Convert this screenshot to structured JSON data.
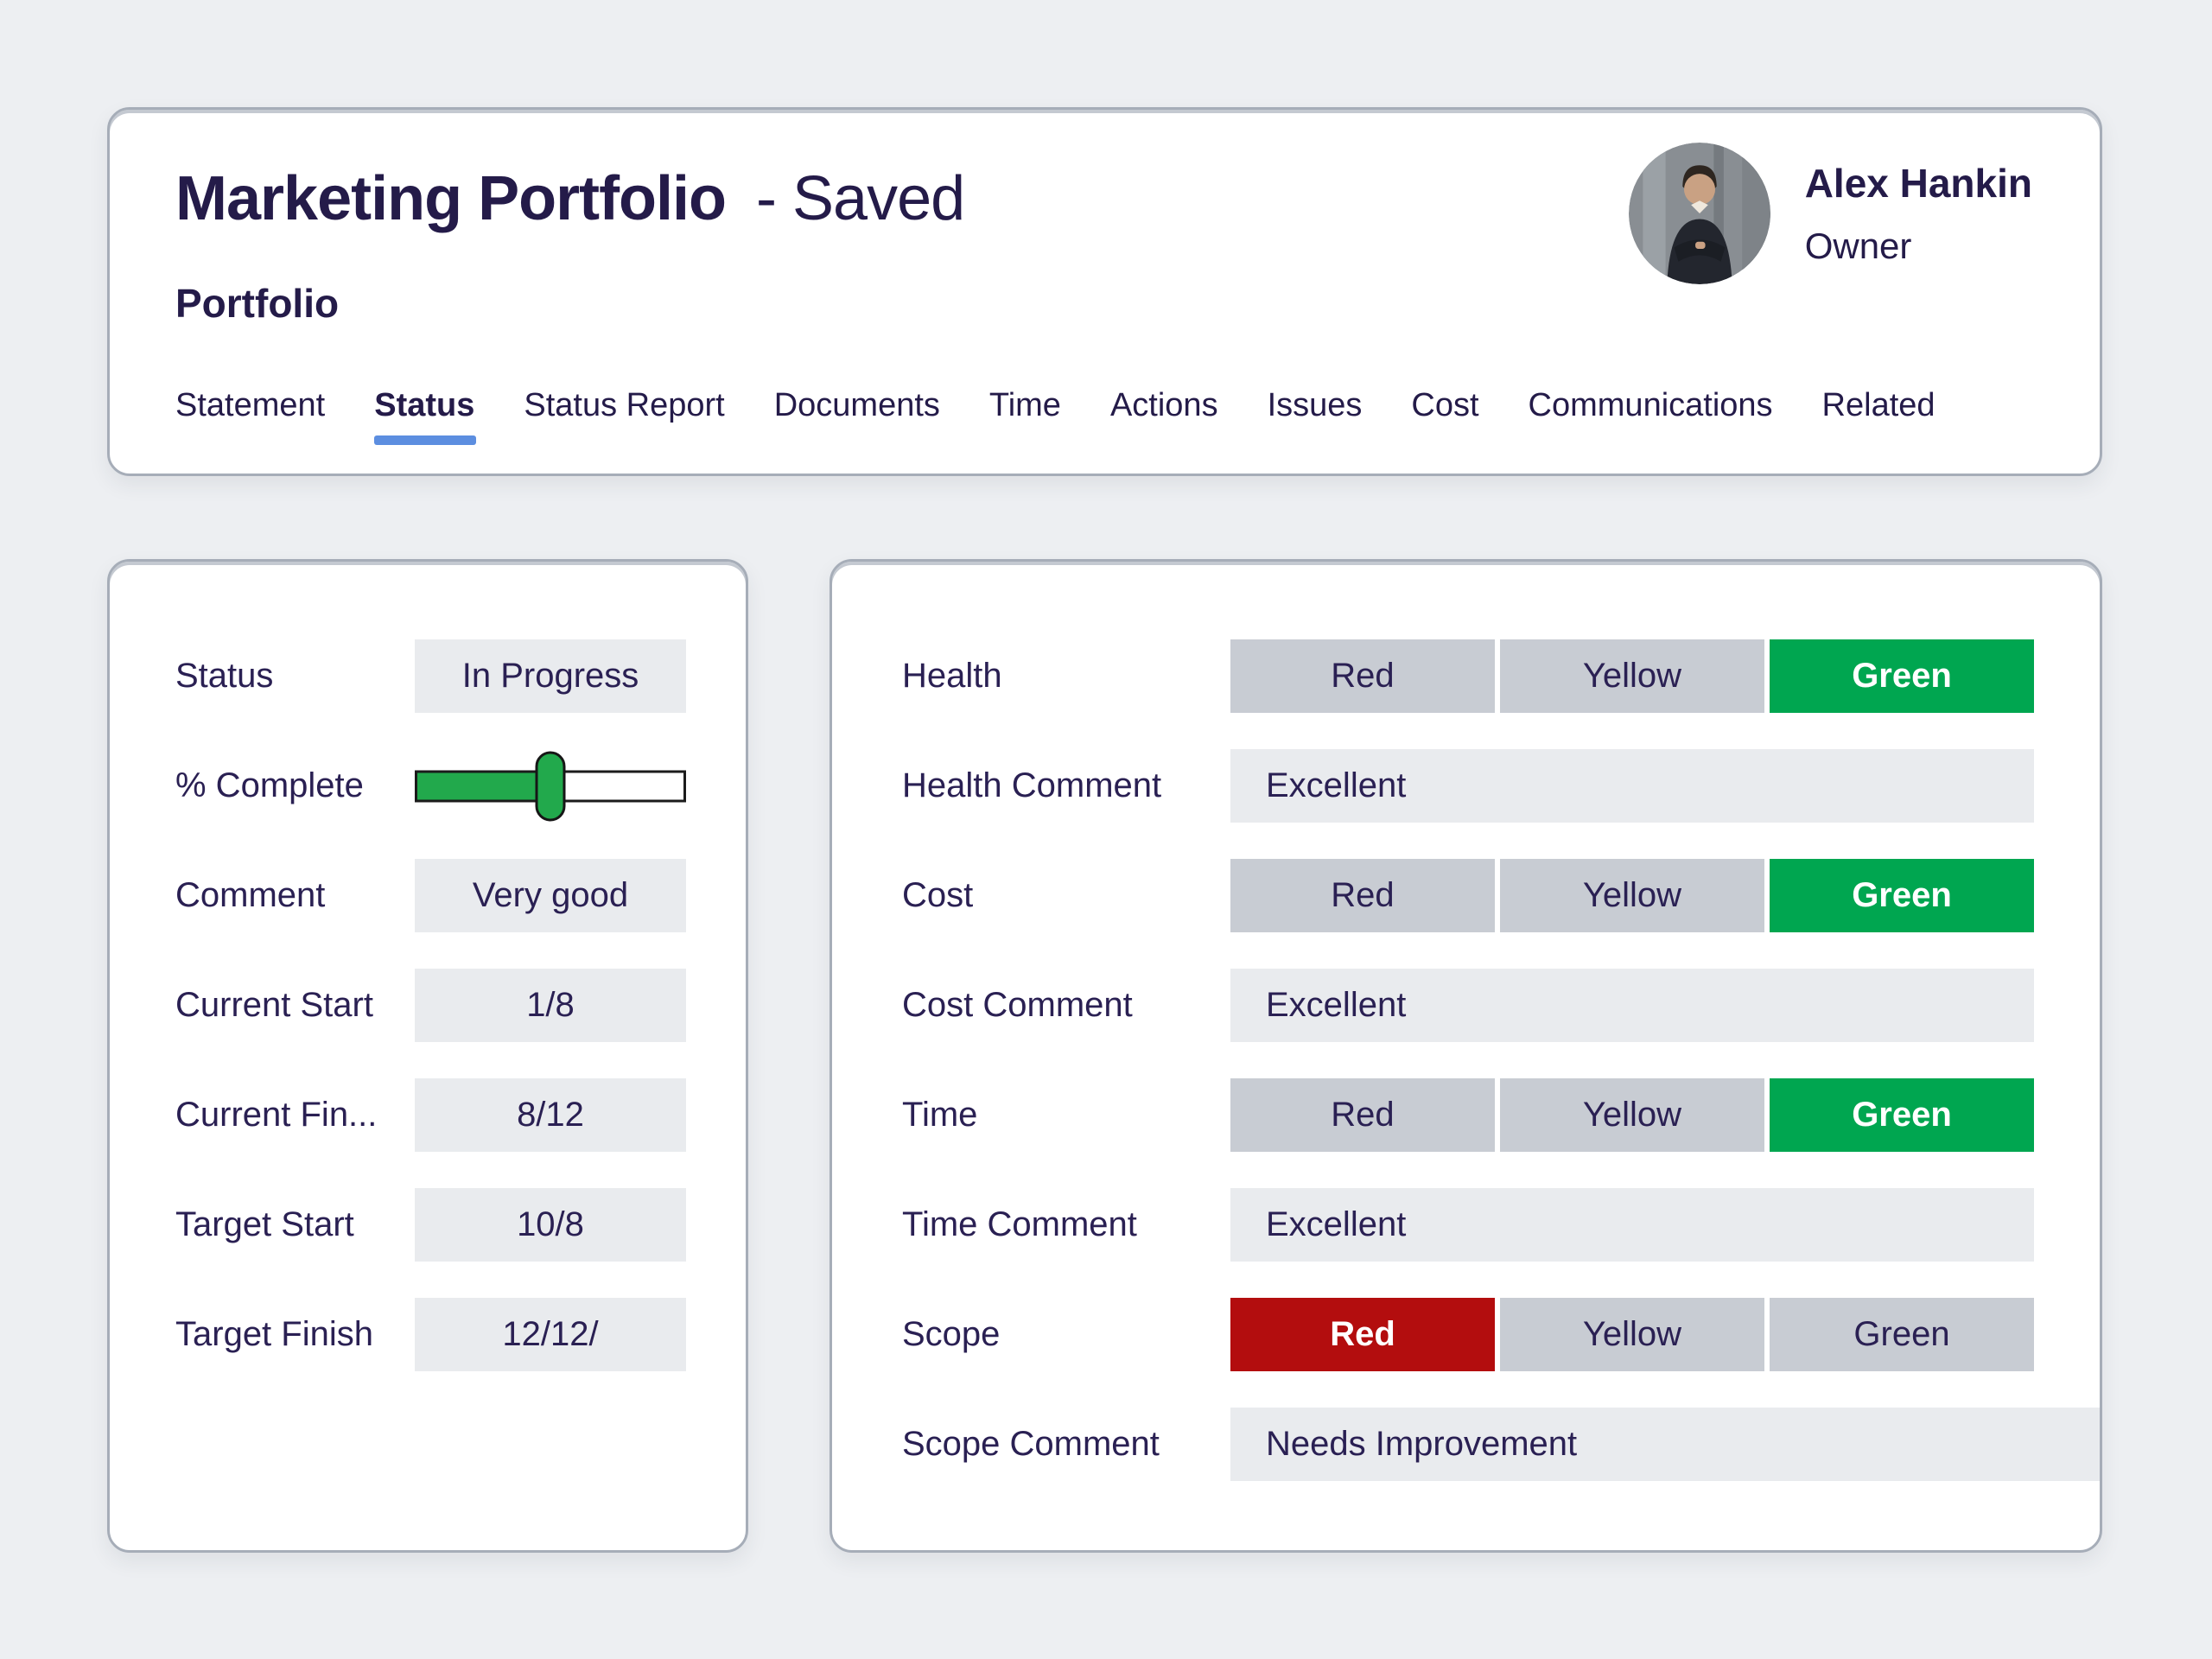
{
  "header": {
    "title": "Marketing Portfolio",
    "saved_suffix": "- Saved",
    "subtitle": "Portfolio",
    "tabs": [
      {
        "label": "Statement",
        "active": false
      },
      {
        "label": "Status",
        "active": true
      },
      {
        "label": "Status Report",
        "active": false
      },
      {
        "label": "Documents",
        "active": false
      },
      {
        "label": "Time",
        "active": false
      },
      {
        "label": "Actions",
        "active": false
      },
      {
        "label": "Issues",
        "active": false
      },
      {
        "label": "Cost",
        "active": false
      },
      {
        "label": "Communications",
        "active": false
      },
      {
        "label": "Related",
        "active": false
      }
    ],
    "user": {
      "name": "Alex Hankin",
      "role": "Owner"
    }
  },
  "left_card": {
    "fields": [
      {
        "label": "Status",
        "value": "In Progress"
      },
      {
        "label": "% Complete",
        "type": "slider",
        "percent": 50
      },
      {
        "label": "Comment",
        "value": "Very good"
      },
      {
        "label": "Current Start",
        "value": "1/8"
      },
      {
        "label": "Current Fin...",
        "value": "8/12"
      },
      {
        "label": "Target Start",
        "value": "10/8"
      },
      {
        "label": "Target Finish",
        "value": "12/12/"
      }
    ]
  },
  "right_card": {
    "rows": [
      {
        "type": "rag",
        "label": "Health",
        "options": [
          "Red",
          "Yellow",
          "Green"
        ],
        "selected": "Green"
      },
      {
        "type": "comment",
        "label": "Health Comment",
        "value": "Excellent"
      },
      {
        "type": "rag",
        "label": "Cost",
        "options": [
          "Red",
          "Yellow",
          "Green"
        ],
        "selected": "Green"
      },
      {
        "type": "comment",
        "label": "Cost Comment",
        "value": "Excellent"
      },
      {
        "type": "rag",
        "label": "Time",
        "options": [
          "Red",
          "Yellow",
          "Green"
        ],
        "selected": "Green"
      },
      {
        "type": "comment",
        "label": "Time Comment",
        "value": "Excellent"
      },
      {
        "type": "rag",
        "label": "Scope",
        "options": [
          "Red",
          "Yellow",
          "Green"
        ],
        "selected": "Red"
      },
      {
        "type": "comment",
        "label": "Scope Comment",
        "value": "Needs Improvement"
      }
    ]
  },
  "colors": {
    "green_selected": "#00a650",
    "red_selected": "#b30d0e",
    "segment_gray": "#c8ccd3",
    "field_gray": "#e9ebee",
    "tab_underline": "#5c8ee0",
    "text_navy": "#2a2053",
    "slider_green": "#22a94c"
  }
}
